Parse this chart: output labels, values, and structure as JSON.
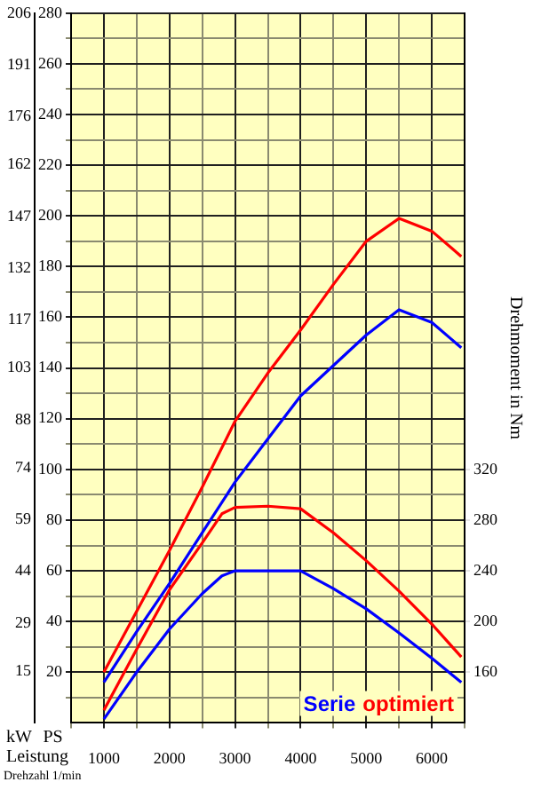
{
  "chart_data": {
    "type": "line",
    "xlabel": "Drehzahl 1/min",
    "ylabel": "PS",
    "y3label": "kW",
    "y2label": "Drehmoment in Nm",
    "annotations": [
      "Leistung"
    ],
    "xlim": [
      500,
      6500
    ],
    "xticks": [
      {
        "value": 500,
        "label": null
      },
      1000,
      {
        "value": 1500,
        "label": null
      },
      2000,
      {
        "value": 2500,
        "label": null
      },
      3000,
      {
        "value": 3500,
        "label": null
      },
      4000,
      {
        "value": 4500,
        "label": null
      },
      5000,
      {
        "value": 5500,
        "label": null
      },
      6000,
      {
        "value": 6500,
        "label": null
      }
    ],
    "ylim": [
      0,
      280
    ],
    "yticks": [
      {
        "value": 10,
        "label": null
      },
      20,
      {
        "value": 30,
        "label": null
      },
      40,
      {
        "value": 50,
        "label": null
      },
      60,
      {
        "value": 70,
        "label": null
      },
      80,
      {
        "value": 90,
        "label": null
      },
      100,
      {
        "value": 110,
        "label": null
      },
      120,
      {
        "value": 130,
        "label": null
      },
      140,
      {
        "value": 150,
        "label": null
      },
      160,
      {
        "value": 170,
        "label": null
      },
      180,
      {
        "value": 190,
        "label": null
      },
      200,
      {
        "value": 210,
        "label": null
      },
      220,
      {
        "value": 230,
        "label": null
      },
      240,
      {
        "value": 250,
        "label": null
      },
      260,
      {
        "value": 270,
        "label": null
      },
      280
    ],
    "y3lim": [
      0,
      206
    ],
    "y3ticks": [
      15,
      29,
      44,
      59,
      74,
      88,
      103,
      117,
      132,
      147,
      162,
      176,
      191,
      206
    ],
    "y2lim": [
      120,
      680
    ],
    "y2ticks": [
      160,
      200,
      240,
      280,
      320
    ],
    "grid": true,
    "legend": "bottom right",
    "marker": "none",
    "line_style": "solid",
    "series": [
      {
        "name": "Serie",
        "color": "#0000ff",
        "x": [
          1000,
          1500,
          2000,
          2500,
          3000,
          3500,
          4000,
          4500,
          5000,
          5500,
          6000,
          6450
        ],
        "values": [
          16,
          36,
          55,
          75,
          95,
          112,
          129,
          141,
          153,
          163,
          158,
          148
        ]
      },
      {
        "name": "optimiert",
        "color": "#ff0000",
        "x": [
          1000,
          1500,
          2000,
          2500,
          3000,
          3500,
          4000,
          4500,
          5000,
          5500,
          6000,
          6450
        ],
        "values": [
          20,
          44,
          68,
          93,
          119,
          138,
          155,
          173,
          190,
          199,
          194,
          184
        ]
      },
      {
        "color": "#0000ff",
        "axis": "y2",
        "x": [
          1000,
          1500,
          2000,
          2500,
          2800,
          3000,
          3500,
          4000,
          4500,
          5000,
          5500,
          6000,
          6450
        ],
        "values": [
          123,
          160,
          194,
          222,
          236,
          240,
          240,
          240,
          226,
          210,
          191,
          171,
          152
        ]
      },
      {
        "color": "#ff0000",
        "axis": "y2",
        "x": [
          1000,
          1500,
          2000,
          2500,
          2800,
          3000,
          3500,
          4000,
          4500,
          5000,
          5500,
          6000,
          6450
        ],
        "values": [
          130,
          178,
          225,
          262,
          285,
          290,
          291,
          289,
          270,
          248,
          224,
          198,
          172
        ]
      }
    ]
  }
}
